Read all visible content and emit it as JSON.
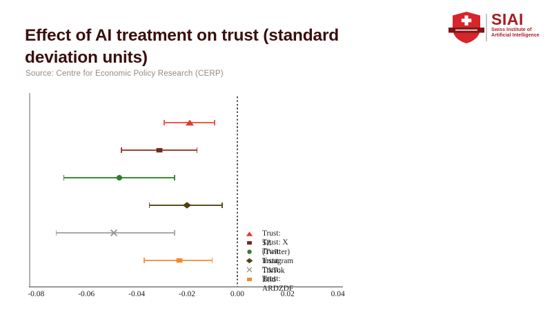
{
  "header": {
    "title": "Effect of AI treatment on trust (standard deviation units)",
    "source_label": "Source: Centre for Economic Policy Research (CERP)",
    "logo": {
      "brand": "SIAI",
      "subtitle_line1": "Swiss Institute of",
      "subtitle_line2": "Artificial Intelligence",
      "shield_color": "#d6252b",
      "banner_color": "#7d1416",
      "brand_color": "#a51d21"
    },
    "title_color": "#390f0d"
  },
  "chart_data": {
    "type": "errorbar",
    "orientation": "horizontal",
    "title": "Effect of AI treatment on trust (standard deviation units)",
    "xlabel": "",
    "ylabel": "",
    "xlim": [
      -0.0826,
      0.042
    ],
    "x_ticks": [
      -0.08,
      -0.06,
      -0.04,
      -0.02,
      0.0,
      0.02,
      0.04
    ],
    "x_tick_labels": [
      "-0.08",
      "-0.06",
      "-0.04",
      "-0.02",
      "0.00",
      "0.02",
      "0.04"
    ],
    "zero_reference_line": 0.0,
    "grid": false,
    "legend_position": "inside lower right",
    "series": [
      {
        "name": "Trust: SZ",
        "marker": "triangle",
        "color": "#e23a2b",
        "line_color": "#ef5a4c",
        "estimate": -0.019,
        "ci_low": -0.029,
        "ci_high": -0.009
      },
      {
        "name": "Trust: X (Twitter)",
        "marker": "square",
        "color": "#77291f",
        "line_color": "#9a4338",
        "estimate": -0.031,
        "ci_low": -0.046,
        "ci_high": -0.016
      },
      {
        "name": "Trust: Instagram",
        "marker": "circle",
        "color": "#2e7d28",
        "line_color": "#3c8a34",
        "estimate": -0.047,
        "ci_low": -0.069,
        "ci_high": -0.025
      },
      {
        "name": "Trust: TikTok",
        "marker": "diamond",
        "color": "#514013",
        "line_color": "#5d4c20",
        "estimate": -0.02,
        "ci_low": -0.035,
        "ci_high": -0.006
      },
      {
        "name": "Trust: Bild",
        "marker": "x",
        "color": "#8f8f8f",
        "line_color": "#a9a9a9",
        "estimate": -0.049,
        "ci_low": -0.072,
        "ci_high": -0.025
      },
      {
        "name": "Trust: ARDZDF",
        "marker": "square",
        "color": "#f08a33",
        "line_color": "#f2984c",
        "estimate": -0.023,
        "ci_low": -0.037,
        "ci_high": -0.01
      }
    ]
  }
}
